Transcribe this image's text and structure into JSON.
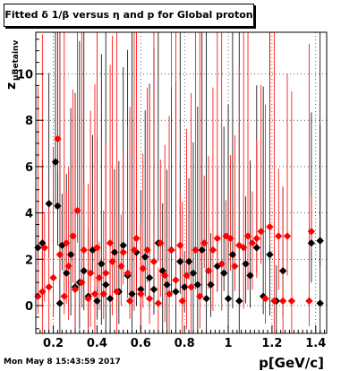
{
  "chart_data": {
    "type": "scatter",
    "title": "Fitted δ 1/β versus η and p for Global proton",
    "xlabel": "p[GeV/c]",
    "ylabel": "z_{μBetainv}",
    "ylabel_main": "z",
    "ylabel_sub": "μBetainv",
    "xlim": [
      0.12,
      1.45
    ],
    "ylim": [
      -1.2,
      11.8
    ],
    "x_ticks": [
      0.2,
      0.4,
      0.6,
      0.8,
      1.0,
      1.2,
      1.4
    ],
    "x_tick_labels": [
      "0.2",
      "0.4",
      "0.6",
      "0.8",
      "1",
      "1.2",
      "1.4"
    ],
    "y_ticks": [
      0,
      2,
      4,
      6,
      8,
      10
    ],
    "y_tick_labels": [
      "0",
      "2",
      "4",
      "6",
      "8",
      "10"
    ],
    "grid": true,
    "series": [
      {
        "marker": "diamond",
        "color": "#000000",
        "points": [
          [
            0.13,
            2.5
          ],
          [
            0.15,
            2.7
          ],
          [
            0.18,
            4.4
          ],
          [
            0.21,
            6.2
          ],
          [
            0.22,
            4.3
          ],
          [
            0.23,
            0.1
          ],
          [
            0.24,
            2.6
          ],
          [
            0.26,
            1.4
          ],
          [
            0.28,
            2.2
          ],
          [
            0.3,
            0.8
          ],
          [
            0.32,
            1.0
          ],
          [
            0.34,
            1.5
          ],
          [
            0.36,
            0.4
          ],
          [
            0.38,
            2.4
          ],
          [
            0.4,
            0.2
          ],
          [
            0.42,
            1.8
          ],
          [
            0.44,
            0.9
          ],
          [
            0.46,
            0.3
          ],
          [
            0.48,
            2.3
          ],
          [
            0.5,
            0.6
          ],
          [
            0.52,
            2.6
          ],
          [
            0.54,
            1.3
          ],
          [
            0.56,
            0.5
          ],
          [
            0.58,
            2.3
          ],
          [
            0.6,
            0.7
          ],
          [
            0.62,
            2.1
          ],
          [
            0.64,
            1.2
          ],
          [
            0.66,
            0.7
          ],
          [
            0.68,
            2.7
          ],
          [
            0.7,
            1.5
          ],
          [
            0.72,
            0.9
          ],
          [
            0.74,
            2.4
          ],
          [
            0.76,
            0.6
          ],
          [
            0.78,
            1.9
          ],
          [
            0.8,
            0.8
          ],
          [
            0.82,
            1.9
          ],
          [
            0.84,
            1.4
          ],
          [
            0.86,
            0.9
          ],
          [
            0.88,
            2.4
          ],
          [
            0.9,
            0.3
          ],
          [
            0.92,
            0.9
          ],
          [
            0.95,
            1.7
          ],
          [
            0.98,
            1.4
          ],
          [
            1.0,
            0.3
          ],
          [
            1.02,
            2.2
          ],
          [
            1.05,
            0.2
          ],
          [
            1.08,
            1.8
          ],
          [
            1.1,
            1.3
          ],
          [
            1.13,
            2.5
          ],
          [
            1.16,
            0.4
          ],
          [
            1.19,
            2.2
          ],
          [
            1.22,
            0.2
          ],
          [
            1.25,
            1.5
          ],
          [
            1.38,
            2.7
          ],
          [
            1.42,
            0.1
          ],
          [
            1.42,
            2.8
          ]
        ]
      },
      {
        "marker": "diamond",
        "color": "#ff0000",
        "points": [
          [
            0.13,
            0.4
          ],
          [
            0.15,
            0.6
          ],
          [
            0.16,
            2.5
          ],
          [
            0.18,
            0.8
          ],
          [
            0.2,
            1.2
          ],
          [
            0.22,
            7.2
          ],
          [
            0.23,
            2.2
          ],
          [
            0.25,
            0.4
          ],
          [
            0.26,
            2.7
          ],
          [
            0.27,
            1.7
          ],
          [
            0.29,
            3.0
          ],
          [
            0.3,
            0.7
          ],
          [
            0.31,
            4.1
          ],
          [
            0.33,
            1.0
          ],
          [
            0.34,
            2.4
          ],
          [
            0.36,
            0.3
          ],
          [
            0.37,
            1.4
          ],
          [
            0.39,
            0.5
          ],
          [
            0.4,
            2.5
          ],
          [
            0.41,
            1.2
          ],
          [
            0.43,
            0.5
          ],
          [
            0.44,
            1.4
          ],
          [
            0.46,
            2.7
          ],
          [
            0.47,
            1.9
          ],
          [
            0.49,
            0.6
          ],
          [
            0.51,
            1.7
          ],
          [
            0.52,
            2.3
          ],
          [
            0.54,
            1.4
          ],
          [
            0.55,
            0.2
          ],
          [
            0.57,
            2.4
          ],
          [
            0.58,
            2.9
          ],
          [
            0.6,
            0.5
          ],
          [
            0.61,
            1.6
          ],
          [
            0.63,
            2.4
          ],
          [
            0.64,
            0.3
          ],
          [
            0.66,
            1.9
          ],
          [
            0.68,
            0.1
          ],
          [
            0.69,
            2.7
          ],
          [
            0.71,
            1.3
          ],
          [
            0.73,
            0.5
          ],
          [
            0.74,
            2.4
          ],
          [
            0.76,
            1.1
          ],
          [
            0.78,
            2.6
          ],
          [
            0.79,
            0.2
          ],
          [
            0.81,
            1.3
          ],
          [
            0.83,
            0.8
          ],
          [
            0.85,
            2.4
          ],
          [
            0.87,
            0.4
          ],
          [
            0.89,
            2.7
          ],
          [
            0.91,
            1.5
          ],
          [
            0.93,
            2.4
          ],
          [
            0.95,
            2.9
          ],
          [
            0.97,
            1.8
          ],
          [
            0.99,
            3.0
          ],
          [
            1.01,
            2.9
          ],
          [
            1.03,
            1.7
          ],
          [
            1.05,
            2.6
          ],
          [
            1.07,
            2.5
          ],
          [
            1.09,
            3.0
          ],
          [
            1.11,
            2.7
          ],
          [
            1.13,
            2.9
          ],
          [
            1.15,
            3.2
          ],
          [
            1.17,
            0.3
          ],
          [
            1.19,
            3.4
          ],
          [
            1.21,
            0.2
          ],
          [
            1.23,
            3.0
          ],
          [
            1.25,
            0.2
          ],
          [
            1.27,
            3.0
          ],
          [
            1.29,
            0.2
          ],
          [
            1.37,
            0.2
          ],
          [
            1.38,
            3.2
          ]
        ]
      }
    ]
  },
  "footer": {
    "timestamp": "Mon May  8 15:43:59 2017"
  }
}
